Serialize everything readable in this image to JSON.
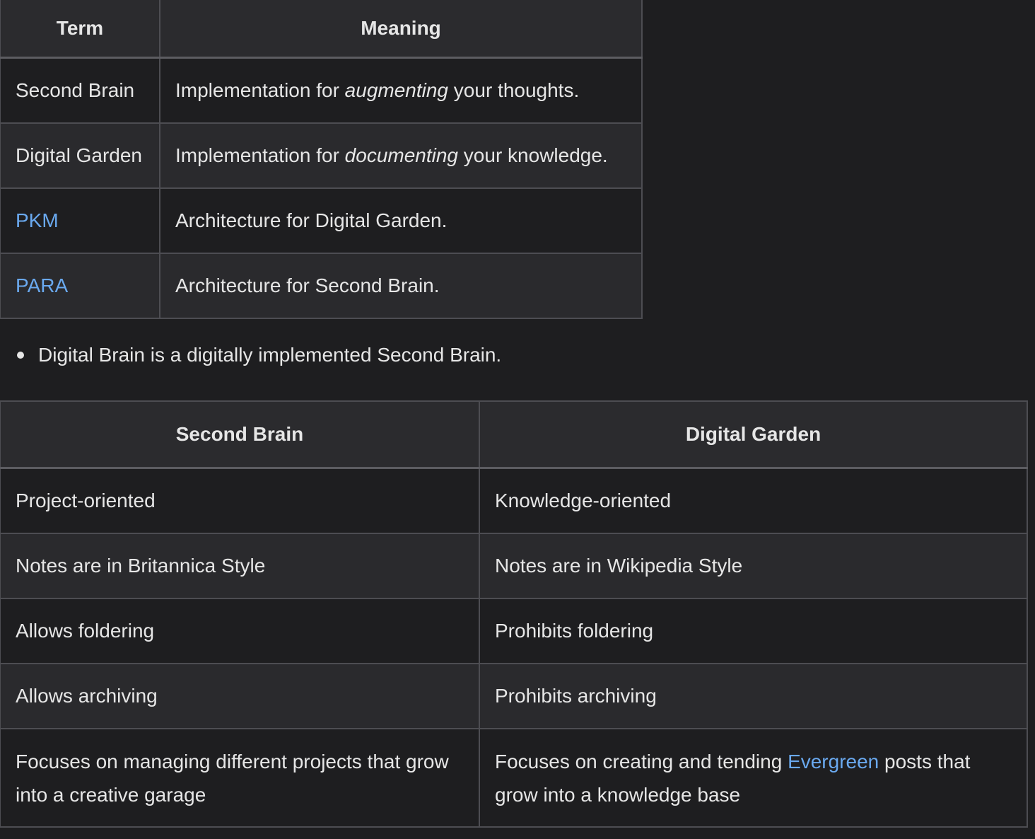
{
  "table1": {
    "headers": [
      "Term",
      "Meaning"
    ],
    "rows": [
      {
        "term": "Second Brain",
        "pre": "Implementation for ",
        "em": "augmenting",
        "post": " your thoughts."
      },
      {
        "term": "Digital Garden",
        "pre": "Implementation for ",
        "em": "documenting",
        "post": " your knowledge."
      },
      {
        "term": "PKM",
        "meaning": "Architecture for Digital Garden."
      },
      {
        "term": "PARA",
        "meaning": "Architecture for Second Brain."
      }
    ]
  },
  "bullet": "Digital Brain is a digitally implemented Second Brain.",
  "table2": {
    "headers": [
      "Second Brain",
      "Digital Garden"
    ],
    "rows": [
      [
        "Project-oriented",
        "Knowledge-oriented"
      ],
      [
        "Notes are in Britannica Style",
        "Notes are in Wikipedia Style"
      ],
      [
        "Allows foldering",
        "Prohibits foldering"
      ],
      [
        "Allows archiving",
        "Prohibits archiving"
      ]
    ],
    "last_row": {
      "left": "Focuses on managing different projects that grow into a creative garage",
      "right_pre": "Focuses on creating and tending ",
      "right_link": "Evergreen",
      "right_post": " posts that grow into a knowledge base"
    }
  },
  "colors": {
    "background": "#1e1e20",
    "row_alt": "#2a2a2d",
    "border": "#4d4d52",
    "text": "#e6e6e6",
    "link": "#6aa9ef"
  }
}
